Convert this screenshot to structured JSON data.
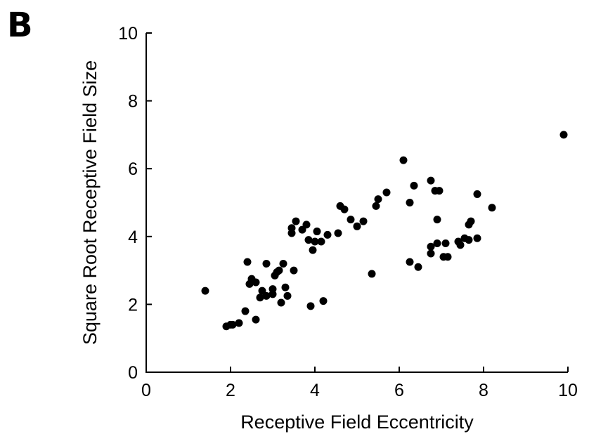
{
  "panel_label": "B",
  "chart_data": {
    "type": "scatter",
    "title": "",
    "xlabel": "Receptive Field Eccentricity",
    "ylabel": "Square Root Receptive Field Size",
    "xlim": [
      0,
      10
    ],
    "ylim": [
      0,
      10
    ],
    "xticks": [
      0,
      2,
      4,
      6,
      8,
      10
    ],
    "yticks": [
      0,
      2,
      4,
      6,
      8,
      10
    ],
    "grid": false,
    "marker_color": "#000000",
    "points": [
      [
        1.4,
        2.4
      ],
      [
        1.9,
        1.35
      ],
      [
        2.0,
        1.4
      ],
      [
        2.05,
        1.4
      ],
      [
        2.2,
        1.45
      ],
      [
        2.35,
        1.8
      ],
      [
        2.4,
        3.25
      ],
      [
        2.45,
        2.6
      ],
      [
        2.5,
        2.75
      ],
      [
        2.6,
        2.65
      ],
      [
        2.6,
        1.55
      ],
      [
        2.7,
        2.2
      ],
      [
        2.75,
        2.4
      ],
      [
        2.85,
        3.2
      ],
      [
        2.85,
        2.25
      ],
      [
        3.0,
        2.3
      ],
      [
        3.0,
        2.45
      ],
      [
        3.05,
        2.85
      ],
      [
        3.1,
        2.95
      ],
      [
        3.15,
        3.0
      ],
      [
        3.2,
        2.05
      ],
      [
        3.25,
        3.2
      ],
      [
        3.3,
        2.5
      ],
      [
        3.35,
        2.25
      ],
      [
        3.5,
        3.0
      ],
      [
        3.45,
        4.1
      ],
      [
        3.45,
        4.25
      ],
      [
        3.55,
        4.45
      ],
      [
        3.7,
        4.2
      ],
      [
        3.8,
        4.35
      ],
      [
        3.85,
        3.9
      ],
      [
        3.9,
        1.95
      ],
      [
        3.95,
        3.6
      ],
      [
        4.0,
        3.85
      ],
      [
        4.05,
        4.15
      ],
      [
        4.15,
        3.85
      ],
      [
        4.2,
        2.1
      ],
      [
        4.3,
        4.05
      ],
      [
        4.6,
        4.9
      ],
      [
        4.55,
        4.1
      ],
      [
        4.7,
        4.8
      ],
      [
        4.85,
        4.5
      ],
      [
        5.0,
        4.3
      ],
      [
        5.15,
        4.45
      ],
      [
        5.35,
        2.9
      ],
      [
        5.45,
        4.9
      ],
      [
        5.5,
        5.1
      ],
      [
        5.7,
        5.3
      ],
      [
        6.1,
        6.25
      ],
      [
        6.25,
        5.0
      ],
      [
        6.25,
        3.25
      ],
      [
        6.35,
        5.5
      ],
      [
        6.45,
        3.1
      ],
      [
        6.75,
        5.65
      ],
      [
        6.75,
        3.5
      ],
      [
        6.75,
        3.7
      ],
      [
        6.85,
        5.35
      ],
      [
        6.9,
        3.8
      ],
      [
        6.9,
        4.5
      ],
      [
        6.95,
        5.35
      ],
      [
        7.05,
        3.4
      ],
      [
        7.1,
        3.8
      ],
      [
        7.15,
        3.4
      ],
      [
        7.4,
        3.85
      ],
      [
        7.45,
        3.75
      ],
      [
        7.55,
        3.95
      ],
      [
        7.65,
        3.9
      ],
      [
        7.65,
        4.35
      ],
      [
        7.7,
        4.45
      ],
      [
        7.85,
        5.25
      ],
      [
        7.85,
        3.95
      ],
      [
        8.2,
        4.85
      ],
      [
        9.9,
        7.0
      ]
    ]
  }
}
